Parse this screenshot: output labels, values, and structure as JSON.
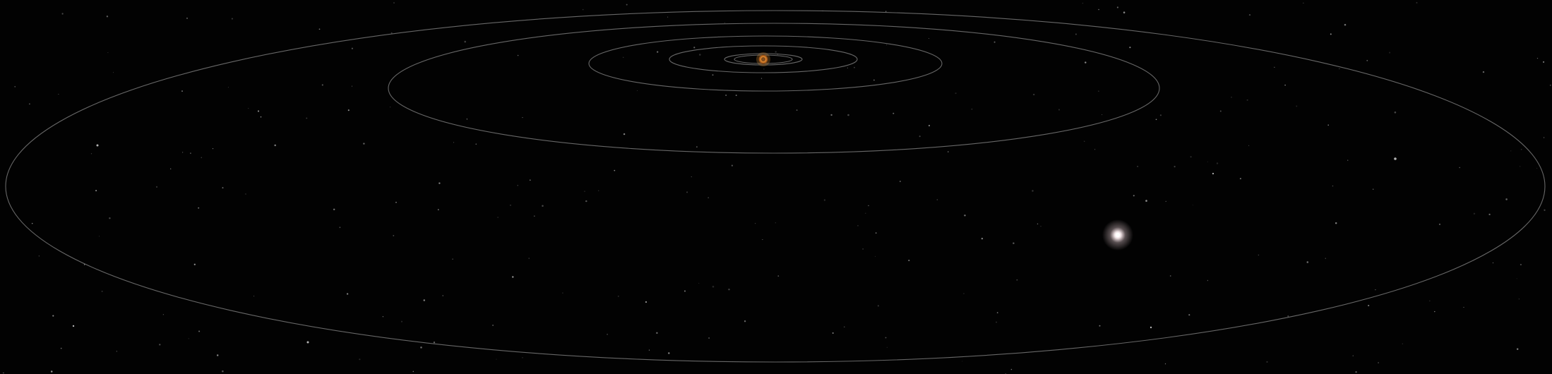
{
  "scene": {
    "background_color": "#020202",
    "orbit_color": "#8a8a8a",
    "star_color": "#ffffff",
    "bright_star_glow_color": "#f3d9de",
    "central_body": {
      "name_icon": "sun-icon",
      "color": "#d9822b",
      "glow_color": "#f0a040"
    },
    "orbit_count": 7
  }
}
